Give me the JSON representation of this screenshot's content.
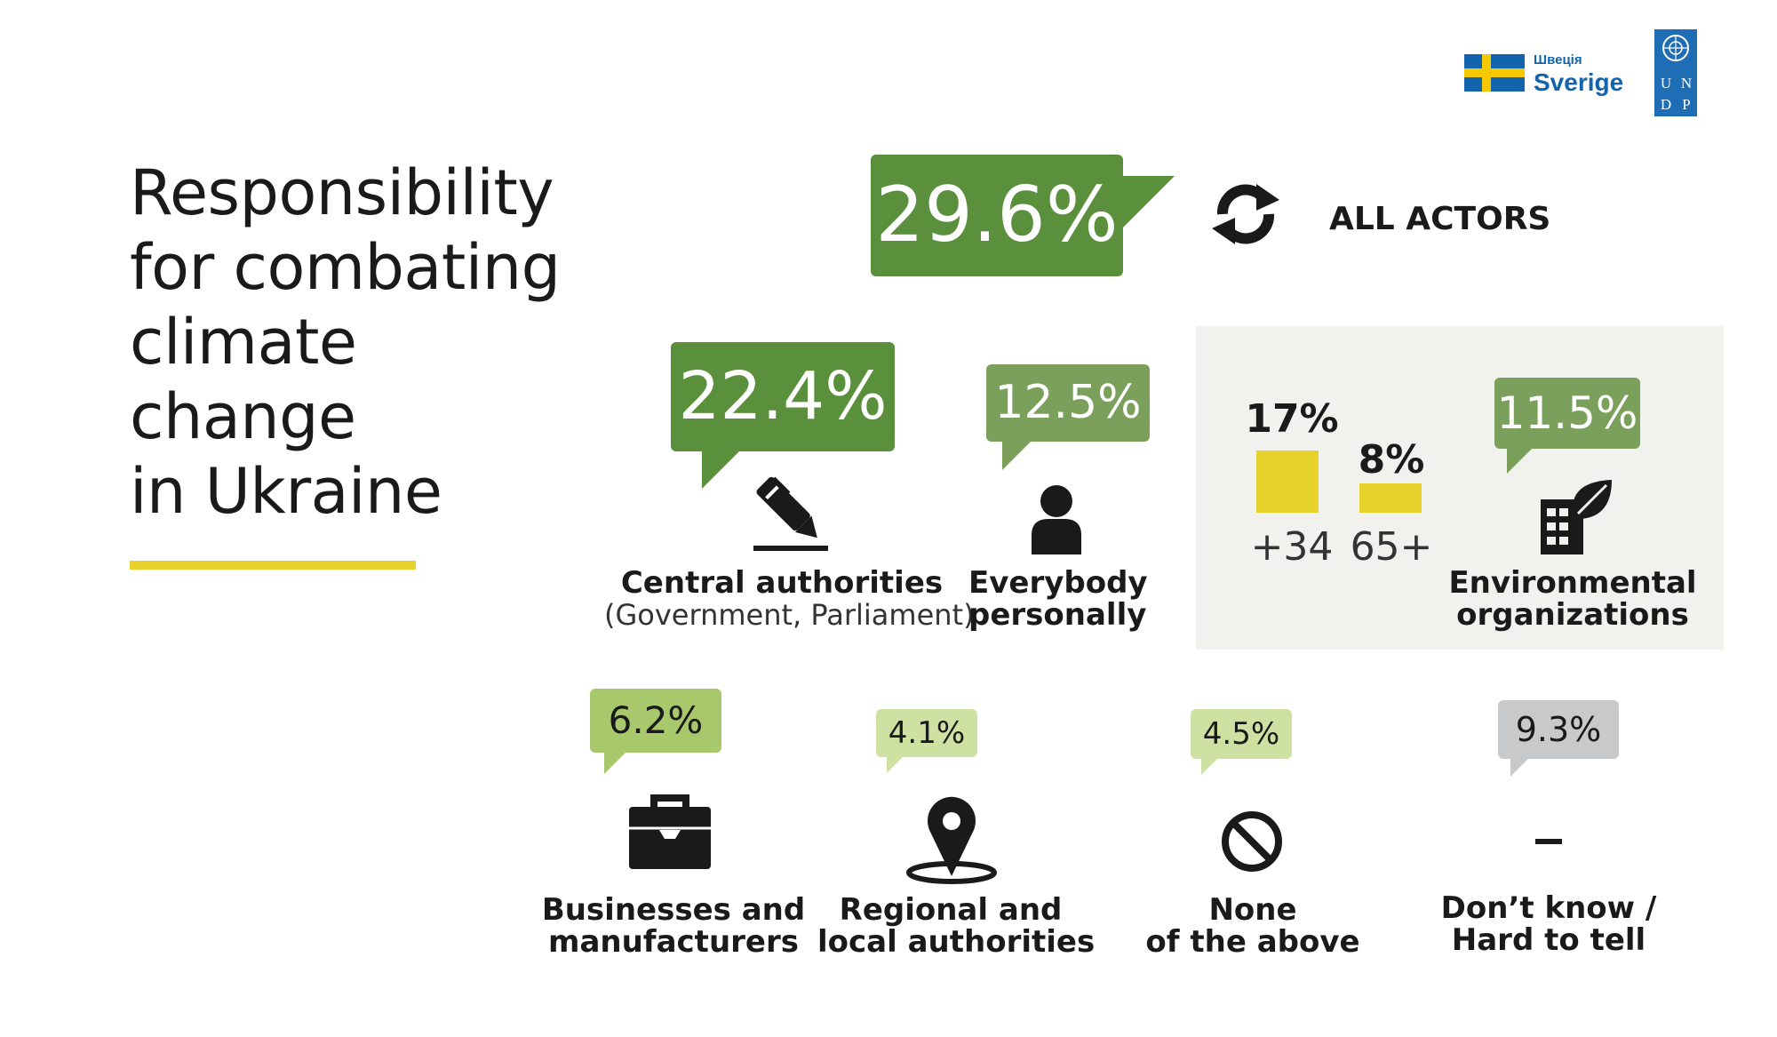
{
  "title": {
    "lines": [
      "Responsibility",
      "for combating",
      "climate",
      "change",
      "in Ukraine"
    ]
  },
  "logos": {
    "sweden_small": "Швеція",
    "sweden_big": "Sverige",
    "undp_letters": [
      "U",
      "N",
      "D",
      "P"
    ]
  },
  "items": {
    "all_actors": {
      "value": "29.6%",
      "label": "ALL ACTORS",
      "icon": "refresh-arrows-icon",
      "color": "#5a8f3c"
    },
    "central": {
      "value": "22.4%",
      "label": "Central authorities",
      "sublabel": "(Government, Parliament)",
      "icon": "pen-signing-icon",
      "color": "#5a8f3c"
    },
    "everybody": {
      "value": "12.5%",
      "label_line1": "Everybody",
      "label_line2": "personally",
      "icon": "person-icon",
      "color": "#7ba05b"
    },
    "environmental": {
      "value": "11.5%",
      "label_line1": "Environmental",
      "label_line2": "organizations",
      "icon": "building-leaf-icon",
      "color": "#7ba05b"
    },
    "businesses": {
      "value": "6.2%",
      "label_line1": "Businesses and",
      "label_line2": "manufacturers",
      "icon": "briefcase-icon",
      "color": "#a8c96b"
    },
    "regional": {
      "value": "4.1%",
      "label_line1": "Regional and",
      "label_line2": "local authorities",
      "icon": "map-pin-icon",
      "color": "#cfe0a3"
    },
    "none": {
      "value": "4.5%",
      "label_line1": "None",
      "label_line2": "of the above",
      "icon": "prohibited-icon",
      "color": "#cfe0a3"
    },
    "dont_know": {
      "value": "9.3%",
      "label_line1": "Don’t know /",
      "label_line2": "Hard to tell",
      "icon": "dash-icon",
      "color": "#c8c9cb"
    }
  },
  "age_breakdown": {
    "young": {
      "value": "17%",
      "label": "+34",
      "percent": 17
    },
    "old": {
      "value": "8%",
      "label": "65+",
      "percent": 8
    },
    "bar_color": "#e6d22b"
  }
}
